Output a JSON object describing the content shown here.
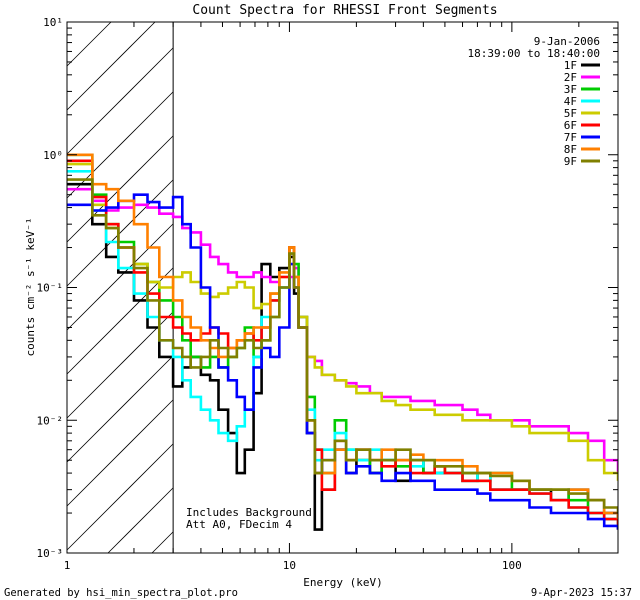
{
  "chart_data": {
    "type": "line",
    "title": "Count Spectra for RHESSI Front Segments",
    "xlabel": "Energy (keV)",
    "ylabel": "counts cm⁻² s⁻¹ keV⁻¹",
    "x_scale": "log",
    "y_scale": "log",
    "xlim": [
      1,
      300
    ],
    "ylim": [
      0.001,
      10
    ],
    "x_ticks": [
      {
        "value": 1,
        "label": "1"
      },
      {
        "value": 10,
        "label": "10"
      },
      {
        "value": 100,
        "label": "100"
      }
    ],
    "y_ticks": [
      {
        "value": 0.001,
        "label": "10⁻³"
      },
      {
        "value": 0.01,
        "label": "10⁻²"
      },
      {
        "value": 0.1,
        "label": "10⁻¹"
      },
      {
        "value": 1,
        "label": "10⁰"
      },
      {
        "value": 10,
        "label": "10¹"
      }
    ],
    "date_text": "9-Jan-2006",
    "time_range_text": "18:39:00 to 18:40:00",
    "hatched_region": {
      "x_from": 1,
      "x_to": 3
    },
    "annotations": [
      "Includes Background",
      "Att A0, FDecim 4"
    ],
    "footer_left": "Generated by hsi_min_spectra_plot.pro",
    "footer_right": "9-Apr-2023 15:37",
    "series": [
      {
        "name": "1F",
        "color": "#000000",
        "x": [
          1.0,
          1.3,
          1.5,
          1.7,
          2.0,
          2.3,
          2.6,
          3.0,
          3.3,
          3.6,
          4.0,
          4.4,
          4.8,
          5.3,
          5.8,
          6.3,
          6.9,
          7.5,
          8.2,
          9.0,
          10.0,
          10.5,
          11.0,
          12.0,
          13.0,
          14.0,
          16.0,
          18.0,
          20.0,
          23.0,
          26.0,
          30.0,
          35.0,
          40.0,
          45.0,
          50.0,
          60.0,
          70.0,
          80.0,
          100.0,
          120.0,
          150.0,
          180.0,
          220.0,
          260.0,
          300.0
        ],
        "y": [
          0.6,
          0.3,
          0.17,
          0.13,
          0.08,
          0.05,
          0.03,
          0.018,
          0.025,
          0.03,
          0.022,
          0.02,
          0.012,
          0.008,
          0.004,
          0.006,
          0.016,
          0.15,
          0.12,
          0.14,
          0.17,
          0.09,
          0.05,
          0.008,
          0.0015,
          0.003,
          0.006,
          0.004,
          0.005,
          0.004,
          0.005,
          0.0035,
          0.005,
          0.004,
          0.004,
          0.004,
          0.0035,
          0.004,
          0.003,
          0.003,
          0.003,
          0.0025,
          0.003,
          0.0025,
          0.002,
          0.0018
        ]
      },
      {
        "name": "2F",
        "color": "#ff00ff",
        "x": [
          1.0,
          1.3,
          1.5,
          1.7,
          2.0,
          2.3,
          2.6,
          3.0,
          3.3,
          3.6,
          4.0,
          4.4,
          4.8,
          5.3,
          5.8,
          6.3,
          6.9,
          7.5,
          8.2,
          9.0,
          10.0,
          10.5,
          11.0,
          12.0,
          13.0,
          14.0,
          16.0,
          18.0,
          20.0,
          23.0,
          26.0,
          30.0,
          35.0,
          40.0,
          45.0,
          50.0,
          60.0,
          70.0,
          80.0,
          100.0,
          120.0,
          150.0,
          180.0,
          220.0,
          260.0,
          300.0
        ],
        "y": [
          0.55,
          0.45,
          0.38,
          0.4,
          0.42,
          0.4,
          0.36,
          0.34,
          0.28,
          0.26,
          0.21,
          0.17,
          0.15,
          0.13,
          0.12,
          0.12,
          0.13,
          0.12,
          0.11,
          0.1,
          0.12,
          0.14,
          0.06,
          0.03,
          0.028,
          0.022,
          0.02,
          0.019,
          0.018,
          0.016,
          0.015,
          0.015,
          0.014,
          0.014,
          0.013,
          0.013,
          0.012,
          0.011,
          0.01,
          0.01,
          0.009,
          0.009,
          0.008,
          0.007,
          0.005,
          0.004
        ]
      },
      {
        "name": "3F",
        "color": "#00cc00",
        "x": [
          1.0,
          1.3,
          1.5,
          1.7,
          2.0,
          2.3,
          2.6,
          3.0,
          3.3,
          3.6,
          4.0,
          4.4,
          4.8,
          5.3,
          5.8,
          6.3,
          6.9,
          7.5,
          8.2,
          9.0,
          10.0,
          10.5,
          11.0,
          12.0,
          13.0,
          14.0,
          16.0,
          18.0,
          20.0,
          23.0,
          26.0,
          30.0,
          35.0,
          40.0,
          45.0,
          50.0,
          60.0,
          70.0,
          80.0,
          100.0,
          120.0,
          150.0,
          180.0,
          220.0,
          260.0,
          300.0
        ],
        "y": [
          1.0,
          0.5,
          0.3,
          0.22,
          0.15,
          0.11,
          0.08,
          0.06,
          0.04,
          0.03,
          0.025,
          0.03,
          0.025,
          0.03,
          0.035,
          0.05,
          0.03,
          0.04,
          0.06,
          0.1,
          0.2,
          0.15,
          0.06,
          0.015,
          0.006,
          0.004,
          0.01,
          0.006,
          0.005,
          0.004,
          0.005,
          0.0045,
          0.005,
          0.004,
          0.0045,
          0.004,
          0.004,
          0.0035,
          0.004,
          0.003,
          0.003,
          0.003,
          0.0025,
          0.002,
          0.0018,
          0.0015
        ]
      },
      {
        "name": "4F",
        "color": "#00ffff",
        "x": [
          1.0,
          1.3,
          1.5,
          1.7,
          2.0,
          2.3,
          2.6,
          3.0,
          3.3,
          3.6,
          4.0,
          4.4,
          4.8,
          5.3,
          5.8,
          6.3,
          6.9,
          7.5,
          8.2,
          9.0,
          10.0,
          10.5,
          11.0,
          12.0,
          13.0,
          14.0,
          16.0,
          18.0,
          20.0,
          23.0,
          26.0,
          30.0,
          35.0,
          40.0,
          45.0,
          50.0,
          60.0,
          70.0,
          80.0,
          100.0,
          120.0,
          150.0,
          180.0,
          220.0,
          260.0,
          300.0
        ],
        "y": [
          0.75,
          0.38,
          0.22,
          0.14,
          0.09,
          0.06,
          0.04,
          0.03,
          0.02,
          0.015,
          0.012,
          0.01,
          0.008,
          0.007,
          0.009,
          0.012,
          0.03,
          0.06,
          0.08,
          0.1,
          0.18,
          0.12,
          0.05,
          0.012,
          0.005,
          0.006,
          0.008,
          0.006,
          0.005,
          0.006,
          0.005,
          0.005,
          0.0045,
          0.005,
          0.004,
          0.004,
          0.0035,
          0.004,
          0.003,
          0.003,
          0.0028,
          0.0025,
          0.0022,
          0.002,
          0.0018,
          0.0015
        ]
      },
      {
        "name": "5F",
        "color": "#cccc00",
        "x": [
          1.0,
          1.3,
          1.5,
          1.7,
          2.0,
          2.3,
          2.6,
          3.0,
          3.3,
          3.6,
          4.0,
          4.4,
          4.8,
          5.3,
          5.8,
          6.3,
          6.9,
          7.5,
          8.2,
          9.0,
          10.0,
          10.5,
          11.0,
          12.0,
          13.0,
          14.0,
          16.0,
          18.0,
          20.0,
          23.0,
          26.0,
          30.0,
          35.0,
          40.0,
          45.0,
          50.0,
          60.0,
          70.0,
          80.0,
          100.0,
          120.0,
          150.0,
          180.0,
          220.0,
          260.0,
          300.0
        ],
        "y": [
          0.85,
          0.42,
          0.28,
          0.2,
          0.15,
          0.11,
          0.1,
          0.12,
          0.13,
          0.11,
          0.09,
          0.085,
          0.09,
          0.1,
          0.11,
          0.1,
          0.07,
          0.075,
          0.09,
          0.12,
          0.2,
          0.12,
          0.06,
          0.03,
          0.025,
          0.022,
          0.02,
          0.018,
          0.016,
          0.016,
          0.014,
          0.013,
          0.012,
          0.012,
          0.011,
          0.011,
          0.01,
          0.01,
          0.01,
          0.009,
          0.008,
          0.008,
          0.007,
          0.005,
          0.004,
          0.0035
        ]
      },
      {
        "name": "6F",
        "color": "#ff0000",
        "x": [
          1.0,
          1.3,
          1.5,
          1.7,
          2.0,
          2.3,
          2.6,
          3.0,
          3.3,
          3.6,
          4.0,
          4.4,
          4.8,
          5.3,
          5.8,
          6.3,
          6.9,
          7.5,
          8.2,
          9.0,
          10.0,
          10.5,
          11.0,
          12.0,
          13.0,
          14.0,
          16.0,
          18.0,
          20.0,
          23.0,
          26.0,
          30.0,
          35.0,
          40.0,
          45.0,
          50.0,
          60.0,
          70.0,
          80.0,
          100.0,
          120.0,
          150.0,
          180.0,
          220.0,
          260.0,
          300.0
        ],
        "y": [
          0.9,
          0.48,
          0.3,
          0.2,
          0.13,
          0.09,
          0.06,
          0.05,
          0.045,
          0.04,
          0.045,
          0.05,
          0.045,
          0.035,
          0.04,
          0.045,
          0.04,
          0.05,
          0.08,
          0.12,
          0.2,
          0.1,
          0.05,
          0.01,
          0.006,
          0.003,
          0.007,
          0.005,
          0.006,
          0.005,
          0.0045,
          0.005,
          0.004,
          0.004,
          0.0045,
          0.004,
          0.0035,
          0.0035,
          0.003,
          0.003,
          0.0028,
          0.0025,
          0.0022,
          0.002,
          0.0018,
          0.0015
        ]
      },
      {
        "name": "7F",
        "color": "#0000ff",
        "x": [
          1.0,
          1.3,
          1.5,
          1.7,
          2.0,
          2.3,
          2.6,
          3.0,
          3.3,
          3.6,
          4.0,
          4.4,
          4.8,
          5.3,
          5.8,
          6.3,
          6.9,
          7.5,
          8.2,
          9.0,
          10.0,
          10.5,
          11.0,
          12.0,
          13.0,
          14.0,
          16.0,
          18.0,
          20.0,
          23.0,
          26.0,
          30.0,
          35.0,
          40.0,
          45.0,
          50.0,
          60.0,
          70.0,
          80.0,
          100.0,
          120.0,
          150.0,
          180.0,
          220.0,
          260.0,
          300.0
        ],
        "y": [
          0.42,
          0.38,
          0.4,
          0.45,
          0.5,
          0.44,
          0.4,
          0.48,
          0.3,
          0.2,
          0.1,
          0.05,
          0.025,
          0.02,
          0.015,
          0.012,
          0.025,
          0.035,
          0.03,
          0.05,
          0.15,
          0.1,
          0.05,
          0.008,
          0.004,
          0.005,
          0.006,
          0.004,
          0.0045,
          0.004,
          0.0035,
          0.004,
          0.0035,
          0.0035,
          0.003,
          0.003,
          0.003,
          0.0028,
          0.0025,
          0.0025,
          0.0022,
          0.002,
          0.002,
          0.0018,
          0.0016,
          0.0015
        ]
      },
      {
        "name": "8F",
        "color": "#ff8000",
        "x": [
          1.0,
          1.3,
          1.5,
          1.7,
          2.0,
          2.3,
          2.6,
          3.0,
          3.3,
          3.6,
          4.0,
          4.4,
          4.8,
          5.3,
          5.8,
          6.3,
          6.9,
          7.5,
          8.2,
          9.0,
          10.0,
          10.5,
          11.0,
          12.0,
          13.0,
          14.0,
          16.0,
          18.0,
          20.0,
          23.0,
          26.0,
          30.0,
          35.0,
          40.0,
          45.0,
          50.0,
          60.0,
          70.0,
          80.0,
          100.0,
          120.0,
          150.0,
          180.0,
          220.0,
          260.0,
          300.0
        ],
        "y": [
          1.0,
          0.6,
          0.55,
          0.45,
          0.3,
          0.2,
          0.12,
          0.08,
          0.06,
          0.05,
          0.04,
          0.035,
          0.03,
          0.035,
          0.04,
          0.045,
          0.05,
          0.05,
          0.09,
          0.13,
          0.2,
          0.12,
          0.05,
          0.01,
          0.004,
          0.004,
          0.006,
          0.005,
          0.006,
          0.005,
          0.006,
          0.005,
          0.0055,
          0.005,
          0.005,
          0.005,
          0.0045,
          0.004,
          0.004,
          0.0035,
          0.003,
          0.003,
          0.003,
          0.0025,
          0.002,
          0.0018
        ]
      },
      {
        "name": "9F",
        "color": "#808000",
        "x": [
          1.0,
          1.3,
          1.5,
          1.7,
          2.0,
          2.3,
          2.6,
          3.0,
          3.3,
          3.6,
          4.0,
          4.4,
          4.8,
          5.3,
          5.8,
          6.3,
          6.9,
          7.5,
          8.2,
          9.0,
          10.0,
          10.5,
          11.0,
          12.0,
          13.0,
          14.0,
          16.0,
          18.0,
          20.0,
          23.0,
          26.0,
          30.0,
          35.0,
          40.0,
          45.0,
          50.0,
          60.0,
          70.0,
          80.0,
          100.0,
          120.0,
          150.0,
          180.0,
          220.0,
          260.0,
          300.0
        ],
        "y": [
          0.65,
          0.35,
          0.28,
          0.2,
          0.14,
          0.08,
          0.04,
          0.035,
          0.03,
          0.025,
          0.03,
          0.04,
          0.035,
          0.03,
          0.035,
          0.04,
          0.035,
          0.04,
          0.06,
          0.1,
          0.18,
          0.1,
          0.05,
          0.01,
          0.004,
          0.005,
          0.007,
          0.005,
          0.006,
          0.005,
          0.005,
          0.006,
          0.005,
          0.005,
          0.0045,
          0.0045,
          0.004,
          0.004,
          0.0038,
          0.0035,
          0.003,
          0.003,
          0.0028,
          0.0025,
          0.0022,
          0.002
        ]
      }
    ]
  }
}
